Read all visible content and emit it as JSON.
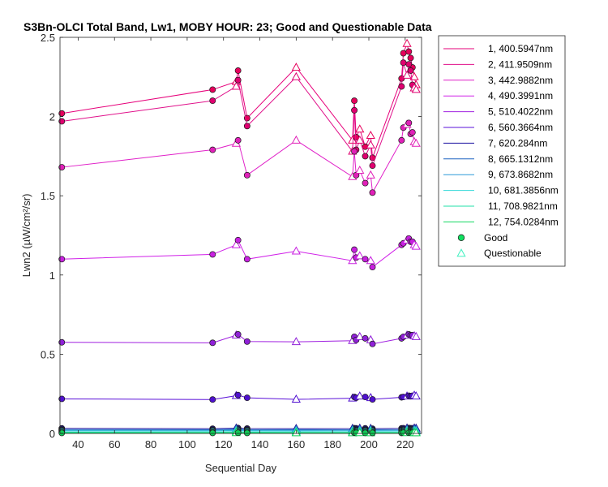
{
  "chart_data": {
    "type": "line",
    "title": "S3Bn-OLCI Total Band, Lw1, MOBY HOUR: 23;  Good and Questionable Data",
    "xlabel": "Sequential Day",
    "ylabel": "Lwn2 (µW/cm²/sr)",
    "xlim": [
      30,
      229
    ],
    "ylim": [
      0,
      2.5
    ],
    "xticks": [
      40,
      60,
      80,
      100,
      120,
      140,
      160,
      180,
      200,
      220
    ],
    "yticks": [
      0,
      0.5,
      1,
      1.5,
      2,
      2.5
    ],
    "xtick_labels": [
      "40",
      "60",
      "80",
      "100",
      "120",
      "140",
      "160",
      "180",
      "200",
      "220"
    ],
    "ytick_labels": [
      "0",
      "0.5",
      "1",
      "1.5",
      "2",
      "2.5"
    ],
    "grid": false,
    "legend_position": "outside-right",
    "x": [
      31,
      114,
      127,
      128,
      133,
      160,
      191,
      192,
      193,
      195,
      198,
      201,
      202,
      218,
      219,
      221,
      222,
      223,
      224,
      225,
      226
    ],
    "quality": [
      "G",
      "G",
      "Q",
      "G",
      "G",
      "Q",
      "Q",
      "G",
      "G",
      "Q",
      "G",
      "Q",
      "G",
      "G",
      "G",
      "Q",
      "G",
      "G",
      "G",
      "Q",
      "Q"
    ],
    "series": [
      {
        "name": "1, 400.5947nm",
        "color": "#e6007a",
        "marker_color": "#e6005c",
        "values": [
          2.02,
          2.17,
          2.22,
          2.29,
          1.99,
          2.31,
          1.85,
          2.1,
          1.87,
          1.92,
          1.81,
          1.88,
          1.74,
          2.24,
          2.4,
          2.46,
          2.41,
          2.37,
          2.31,
          2.25,
          2.2
        ]
      },
      {
        "name": "2, 411.9509nm",
        "color": "#e0108a",
        "marker_color": "#e00070",
        "values": [
          1.97,
          2.1,
          2.19,
          2.23,
          1.94,
          2.25,
          1.78,
          2.04,
          1.79,
          1.85,
          1.75,
          1.82,
          1.69,
          2.19,
          2.34,
          2.26,
          2.33,
          2.29,
          2.2,
          2.18,
          2.17
        ]
      },
      {
        "name": "3, 442.9882nm",
        "color": "#e020c8",
        "marker_color": "#e020b8",
        "values": [
          1.68,
          1.79,
          1.83,
          1.85,
          1.63,
          1.85,
          1.62,
          1.78,
          1.63,
          1.66,
          1.58,
          1.63,
          1.52,
          1.85,
          1.93,
          1.95,
          1.96,
          1.89,
          1.9,
          1.84,
          1.83
        ]
      },
      {
        "name": "4, 490.3991nm",
        "color": "#d020e8",
        "marker_color": "#c820e0",
        "values": [
          1.1,
          1.13,
          1.19,
          1.22,
          1.1,
          1.15,
          1.09,
          1.16,
          1.11,
          1.12,
          1.1,
          1.09,
          1.05,
          1.19,
          1.2,
          1.22,
          1.23,
          1.21,
          1.21,
          1.19,
          1.18
        ]
      },
      {
        "name": "5, 510.4022nm",
        "color": "#a020e0",
        "marker_color": "#9020d8",
        "values": [
          0.575,
          0.572,
          0.62,
          0.625,
          0.58,
          0.578,
          0.585,
          0.61,
          0.59,
          0.61,
          0.6,
          0.59,
          0.565,
          0.6,
          0.61,
          0.62,
          0.625,
          0.62,
          0.62,
          0.615,
          0.61
        ]
      },
      {
        "name": "6, 560.3664nm",
        "color": "#5a10d8",
        "marker_color": "#5010d0",
        "values": [
          0.218,
          0.214,
          0.238,
          0.242,
          0.225,
          0.215,
          0.222,
          0.23,
          0.225,
          0.235,
          0.23,
          0.225,
          0.215,
          0.228,
          0.23,
          0.235,
          0.238,
          0.235,
          0.238,
          0.24,
          0.235
        ]
      },
      {
        "name": "7,  620.284nm",
        "color": "#1a10a0",
        "marker_color": "#201090",
        "values": [
          0.032,
          0.03,
          0.033,
          0.034,
          0.031,
          0.03,
          0.031,
          0.033,
          0.032,
          0.032,
          0.032,
          0.031,
          0.03,
          0.032,
          0.033,
          0.033,
          0.034,
          0.033,
          0.033,
          0.033,
          0.032
        ]
      },
      {
        "name": "8, 665.1312nm",
        "color": "#1860c0",
        "marker_color": "#1858b8",
        "values": [
          0.024,
          0.023,
          0.026,
          0.026,
          0.024,
          0.023,
          0.024,
          0.025,
          0.024,
          0.025,
          0.024,
          0.024,
          0.023,
          0.024,
          0.025,
          0.025,
          0.026,
          0.025,
          0.025,
          0.025,
          0.024
        ]
      },
      {
        "name": "9, 673.8682nm",
        "color": "#2a98d8",
        "marker_color": "#2890d0",
        "values": [
          0.02,
          0.019,
          0.021,
          0.022,
          0.02,
          0.019,
          0.02,
          0.021,
          0.02,
          0.021,
          0.02,
          0.02,
          0.019,
          0.02,
          0.021,
          0.021,
          0.022,
          0.021,
          0.021,
          0.021,
          0.02
        ]
      },
      {
        "name": "10, 681.3856nm",
        "color": "#30d8d8",
        "marker_color": "#30d0d0",
        "values": [
          0.015,
          0.014,
          0.016,
          0.016,
          0.015,
          0.014,
          0.015,
          0.016,
          0.015,
          0.016,
          0.015,
          0.015,
          0.014,
          0.015,
          0.016,
          0.016,
          0.016,
          0.016,
          0.016,
          0.016,
          0.015
        ]
      },
      {
        "name": "11, 708.9821nm",
        "color": "#20e0a8",
        "marker_color": "#20d8a0",
        "values": [
          0.008,
          0.007,
          0.009,
          0.009,
          0.008,
          0.007,
          0.008,
          0.009,
          0.008,
          0.009,
          0.008,
          0.008,
          0.007,
          0.008,
          0.009,
          0.009,
          0.009,
          0.009,
          0.009,
          0.009,
          0.008
        ]
      },
      {
        "name": "12, 754.0284nm",
        "color": "#10d860",
        "marker_color": "#10d058",
        "values": [
          0.003,
          0.003,
          0.004,
          0.004,
          0.003,
          0.003,
          0.003,
          0.004,
          0.003,
          0.004,
          0.003,
          0.003,
          0.003,
          0.003,
          0.004,
          0.004,
          0.004,
          0.004,
          0.004,
          0.004,
          0.003
        ]
      }
    ],
    "markers": [
      {
        "name": "Good",
        "shape": "circle",
        "color": "#10e060"
      },
      {
        "name": "Questionable",
        "shape": "triangle",
        "color": "#40f0c0"
      }
    ]
  }
}
